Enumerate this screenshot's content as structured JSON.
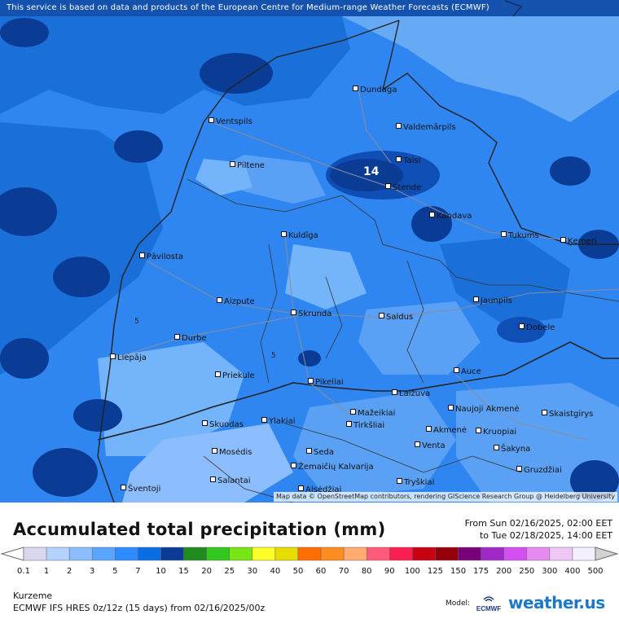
{
  "notice": "This service is based on data and products of the European Centre for Medium-range Weather Forecasts (ECMWF)",
  "map": {
    "credit": "Map data © OpenStreetMap contributors, rendering GIScience Research Group @ Heidelberg University",
    "max_label": "14",
    "contour_label": "5",
    "cities": [
      "Dundaga",
      "Ventspils",
      "Valdemārpils",
      "Talsi",
      "Piltene",
      "Stende",
      "Kandava",
      "Kuldīga",
      "Tukums",
      "Ķemeri",
      "Pāvilosta",
      "Jaunpils",
      "Aizpute",
      "Skrunda",
      "Saldus",
      "Dobele",
      "Durbe",
      "Liepāja",
      "Auce",
      "Priekule",
      "Pikeliai",
      "Laižuva",
      "Mažeikiai",
      "Naujoji Akmenė",
      "Skuodas",
      "Ylakiai",
      "Tirkšliai",
      "Akmenė",
      "Kruopiai",
      "Skaistgirys",
      "Venta",
      "Šakyna",
      "Mosėdis",
      "Seda",
      "Žemaičių Kalvarija",
      "Gruzdžiai",
      "Salantai",
      "Tryškiai",
      "Šventoji",
      "Alsėdžiai"
    ]
  },
  "legend": {
    "title": "Accumulated total precipitation (mm)",
    "from": "From Sun 02/16/2025, 02:00 EET",
    "to": "to Tue 02/18/2025, 14:00 EET",
    "scale_values": [
      "0.1",
      "1",
      "2",
      "3",
      "5",
      "7",
      "10",
      "15",
      "20",
      "25",
      "30",
      "40",
      "50",
      "60",
      "70",
      "80",
      "90",
      "100",
      "125",
      "150",
      "175",
      "200",
      "250",
      "300",
      "400",
      "500"
    ],
    "scale_colors": [
      "#d7d7f0",
      "#b4d2ff",
      "#8cbeff",
      "#5aa5ff",
      "#2d8cff",
      "#0a6ee6",
      "#0a3c96",
      "#1e8c1e",
      "#32c81e",
      "#78e614",
      "#ffff28",
      "#e6dc00",
      "#ff6e00",
      "#ff8c1e",
      "#ffaa6e",
      "#ff5a78",
      "#ff1e50",
      "#c80014",
      "#96000a",
      "#780078",
      "#a028c8",
      "#d250f0",
      "#e68cf0",
      "#f0c8f5",
      "#f5f0ff",
      "#d2d2d2"
    ]
  },
  "region": "Kurzeme",
  "model_run": "ECMWF IFS HRES 0z/12z (15 days) from  02/16/2025/00z",
  "model_tag": "Model:",
  "ecmwf_logo_text": "ECMWF",
  "brand": "weather.us"
}
